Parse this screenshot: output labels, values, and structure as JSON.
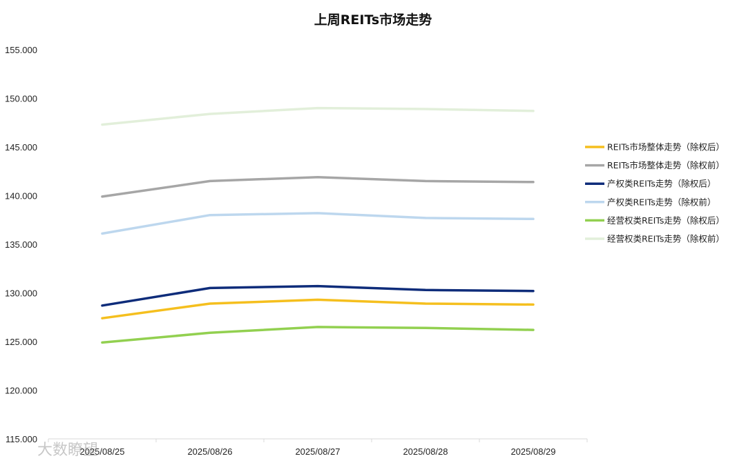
{
  "chart_data": {
    "type": "line",
    "title": "上周REITs市场走势",
    "xlabel": "",
    "ylabel": "",
    "categories": [
      "2025/08/25",
      "2025/08/26",
      "2025/08/27",
      "2025/08/28",
      "2025/08/29"
    ],
    "ylim": [
      115,
      155
    ],
    "yticks": [
      "115.000",
      "120.000",
      "125.000",
      "130.000",
      "135.000",
      "140.000",
      "145.000",
      "150.000",
      "155.000"
    ],
    "grid": false,
    "legend_position": "right",
    "series": [
      {
        "name": "REITs市场整体走势（除权后）",
        "color": "#F5BF1E",
        "values": [
          127.4,
          128.9,
          129.3,
          128.9,
          128.8
        ]
      },
      {
        "name": "REITs市场整体走势（除权前）",
        "color": "#A6A6A6",
        "values": [
          139.9,
          141.5,
          141.9,
          141.5,
          141.4
        ]
      },
      {
        "name": "产权类REITs走势（除权后）",
        "color": "#0E2C7A",
        "values": [
          128.7,
          130.5,
          130.7,
          130.3,
          130.2
        ]
      },
      {
        "name": "产权类REITs走势（除权前）",
        "color": "#BDD7EE",
        "values": [
          136.1,
          138.0,
          138.2,
          137.7,
          137.6
        ]
      },
      {
        "name": "经营权类REITs走势（除权后）",
        "color": "#92D050",
        "values": [
          124.9,
          125.9,
          126.5,
          126.4,
          126.2
        ]
      },
      {
        "name": "经营权类REITs走势（除权前）",
        "color": "#E2EFDA",
        "values": [
          147.3,
          148.4,
          149.0,
          148.9,
          148.7
        ]
      }
    ]
  },
  "watermark": "大数瞭望"
}
